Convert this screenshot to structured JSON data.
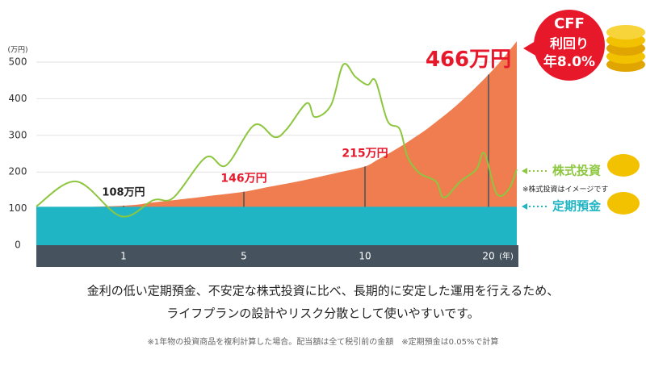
{
  "chart_data": {
    "type": "area",
    "y_unit_label": "(万円)",
    "x_unit_label": "(年)",
    "xlim": [
      0,
      22.3
    ],
    "ylim": [
      0,
      500
    ],
    "xticks": [
      1,
      5,
      10,
      20
    ],
    "yticks": [
      0,
      100,
      200,
      300,
      400,
      500
    ],
    "grid": true,
    "series": [
      {
        "name": "CFF",
        "color": "#ef7d50",
        "x": [
          0,
          1,
          2,
          3,
          4,
          5,
          6,
          7,
          8,
          9,
          10,
          11,
          12,
          13,
          14,
          15,
          16,
          17,
          18,
          19,
          20,
          21,
          22,
          22.3
        ],
        "values": [
          100,
          108,
          117,
          126,
          136,
          146,
          159,
          171,
          185,
          200,
          215,
          233,
          252,
          272,
          294,
          317,
          343,
          370,
          400,
          432,
          466,
          503,
          544,
          557
        ],
        "value_labels": [
          null,
          "108万円",
          null,
          null,
          null,
          "146万円",
          null,
          null,
          null,
          null,
          "215万円",
          null,
          null,
          null,
          null,
          null,
          null,
          null,
          null,
          null,
          "466万円",
          null,
          null,
          null
        ]
      },
      {
        "name": "定期預金",
        "color": "#1fb5c4",
        "x": [
          0,
          22.3
        ],
        "values": [
          105,
          105
        ]
      },
      {
        "name": "株式投資",
        "color": "#8dc63f",
        "x": [
          0,
          0.46,
          0.97,
          1.99,
          2.66,
          3.74,
          4.41,
          5.43,
          6.27,
          6.77,
          7.6,
          7.93,
          8.6,
          9.1,
          9.6,
          10.2,
          10.85,
          11.83,
          12.81,
          13.46,
          14.44,
          15.75,
          16.4,
          17.71,
          19.02,
          19.67,
          20.65,
          21.63,
          22.3
        ],
        "values": [
          106,
          174,
          79,
          123,
          130,
          240,
          218,
          328,
          295,
          317,
          388,
          350,
          383,
          493,
          460,
          438,
          449,
          339,
          317,
          240,
          196,
          174,
          130,
          174,
          207,
          251,
          141,
          152,
          207
        ]
      }
    ],
    "badge": {
      "line2": "利回り",
      "line3": "年8.0%"
    },
    "stock_note": "※株式投資はイメージです",
    "caption": [
      "金利の低い定期預金、不安定な株式投資に比べ、長期的に安定した運用を行えるため、",
      "ライフプランの設計やリスク分散として使いやすいです。"
    ],
    "footnote": "※1年物の投資商品を複利計算した場合。配当額は全て税引前の金額　※定期預金は0.05%で計算"
  }
}
